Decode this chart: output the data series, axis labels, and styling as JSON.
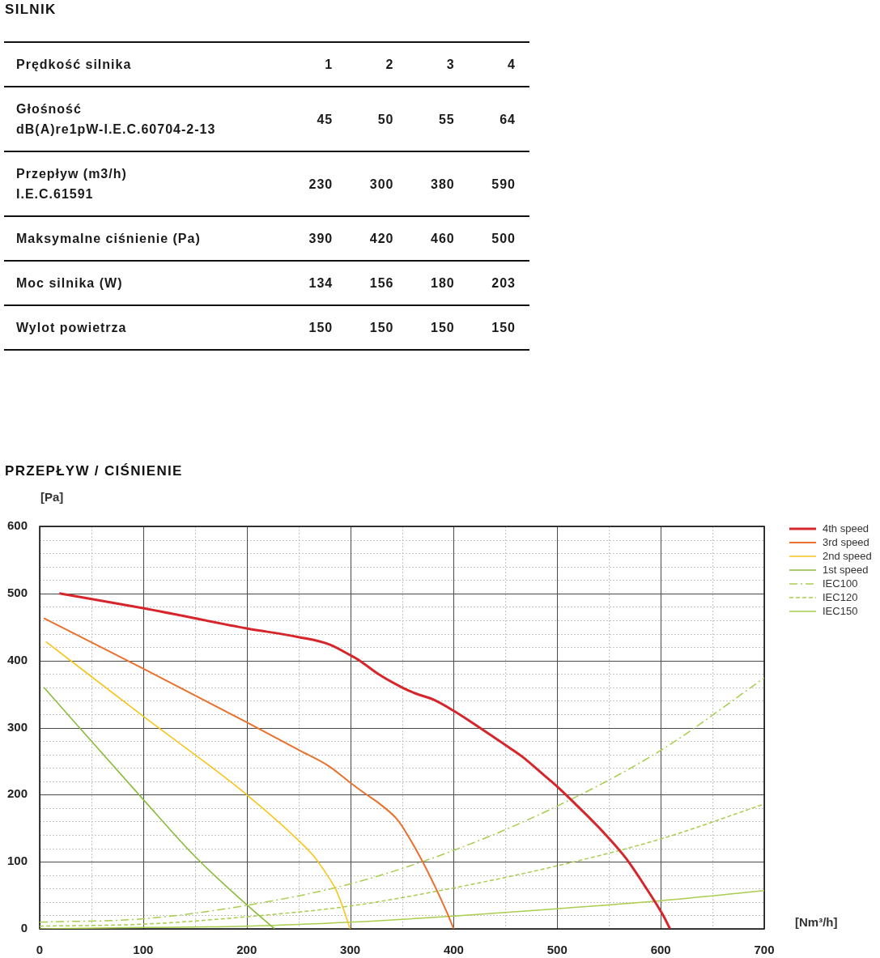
{
  "chart_data": [
    {
      "type": "heatmap",
      "title": "SILNIK",
      "xlabel": "Prędkość silnika",
      "categories": [
        "1",
        "2",
        "3",
        "4"
      ],
      "y_categories": [
        "Głośność\ndB(A)re1pW-I.E.C.60704-2-13",
        "Przepływ (m3/h)\nI.E.C.61591",
        "Maksymalne ciśnienie (Pa)",
        "Moc silnika (W)",
        "Wylot powietrza"
      ],
      "cells": [
        [
          45,
          50,
          55,
          64
        ],
        [
          230,
          300,
          380,
          590
        ],
        [
          390,
          420,
          460,
          500
        ],
        [
          134,
          156,
          180,
          203
        ],
        [
          150,
          150,
          150,
          150
        ]
      ],
      "data_labels": true
    },
    {
      "type": "line",
      "title": "PRZEPŁYW / CIŚNIENIE",
      "xlabel": "[Nm³/h]",
      "ylabel": "[Pa]",
      "xlim": [
        0,
        700
      ],
      "xticks": [
        0,
        {
          "value": 50,
          "label": null
        },
        100,
        {
          "value": 150,
          "label": null
        },
        200,
        {
          "value": 250,
          "label": null
        },
        300,
        {
          "value": 350,
          "label": null
        },
        400,
        {
          "value": 450,
          "label": null
        },
        500,
        {
          "value": 550,
          "label": null
        },
        600,
        {
          "value": 650,
          "label": null
        },
        700
      ],
      "ylim": [
        0,
        600
      ],
      "yticks": [
        0,
        {
          "value": 20,
          "label": null
        },
        {
          "value": 40,
          "label": null
        },
        {
          "value": 60,
          "label": null
        },
        {
          "value": 80,
          "label": null
        },
        100,
        {
          "value": 120,
          "label": null
        },
        {
          "value": 140,
          "label": null
        },
        {
          "value": 160,
          "label": null
        },
        {
          "value": 180,
          "label": null
        },
        200,
        {
          "value": 220,
          "label": null
        },
        {
          "value": 240,
          "label": null
        },
        {
          "value": 260,
          "label": null
        },
        {
          "value": 280,
          "label": null
        },
        300,
        {
          "value": 320,
          "label": null
        },
        {
          "value": 340,
          "label": null
        },
        {
          "value": 360,
          "label": null
        },
        {
          "value": 380,
          "label": null
        },
        400,
        {
          "value": 420,
          "label": null
        },
        {
          "value": 440,
          "label": null
        },
        {
          "value": 460,
          "label": null
        },
        {
          "value": 480,
          "label": null
        },
        500,
        {
          "value": 520,
          "label": null
        },
        {
          "value": 540,
          "label": null
        },
        {
          "value": 560,
          "label": null
        },
        {
          "value": 580,
          "label": null
        },
        600
      ],
      "grid": true,
      "legend": "top right",
      "marker": "none",
      "series": [
        {
          "name": "4th speed",
          "color": "#d7262b",
          "x": [
            19,
            100,
            200,
            250,
            280,
            300,
            309,
            328,
            350,
            363,
            380,
            400,
            425,
            450,
            466,
            488,
            500,
            517,
            544,
            566,
            585,
            602,
            609
          ],
          "values": [
            500,
            478,
            448,
            435,
            424,
            408,
            400,
            379,
            360,
            351,
            342,
            325,
            300,
            274,
            257,
            228,
            212,
            187,
            145,
            106,
            63,
            21,
            0
          ]
        },
        {
          "name": "3rd speed",
          "color": "#e9712d",
          "x": [
            4,
            100,
            200,
            250,
            280,
            300,
            315,
            328,
            346,
            355,
            369,
            382,
            393,
            400
          ],
          "values": [
            463,
            388,
            308,
            267,
            242,
            218,
            201,
            187,
            162,
            141,
            103,
            63,
            26,
            0
          ]
        },
        {
          "name": "2nd speed",
          "color": "#f8c51c",
          "x": [
            6,
            100,
            200,
            252,
            265,
            277,
            286,
            292,
            300
          ],
          "values": [
            428,
            317,
            200,
            129,
            108,
            82,
            59,
            36,
            0
          ]
        },
        {
          "name": "1st speed",
          "color": "#8bbd3c",
          "x": [
            4,
            100,
            150,
            200,
            227
          ],
          "values": [
            360,
            193,
            108,
            36,
            0
          ]
        },
        {
          "name": "IEC100",
          "color": "#a9cd4e",
          "line_style": "dashdot",
          "x": [
            0,
            100,
            200,
            300,
            400,
            500,
            600,
            700
          ],
          "values": [
            10,
            15,
            35,
            67,
            117,
            183,
            266,
            374
          ]
        },
        {
          "name": "IEC120",
          "color": "#a9cd4e",
          "line_style": "dashed",
          "x": [
            0,
            100,
            200,
            300,
            400,
            500,
            600,
            700
          ],
          "values": [
            4,
            7,
            18,
            34,
            61,
            94,
            134,
            186
          ]
        },
        {
          "name": "IEC150",
          "color": "#a9cd4e",
          "x": [
            0,
            100,
            200,
            300,
            400,
            500,
            600,
            700
          ],
          "values": [
            0,
            2,
            4,
            10,
            19,
            30,
            42,
            57
          ]
        }
      ]
    }
  ]
}
